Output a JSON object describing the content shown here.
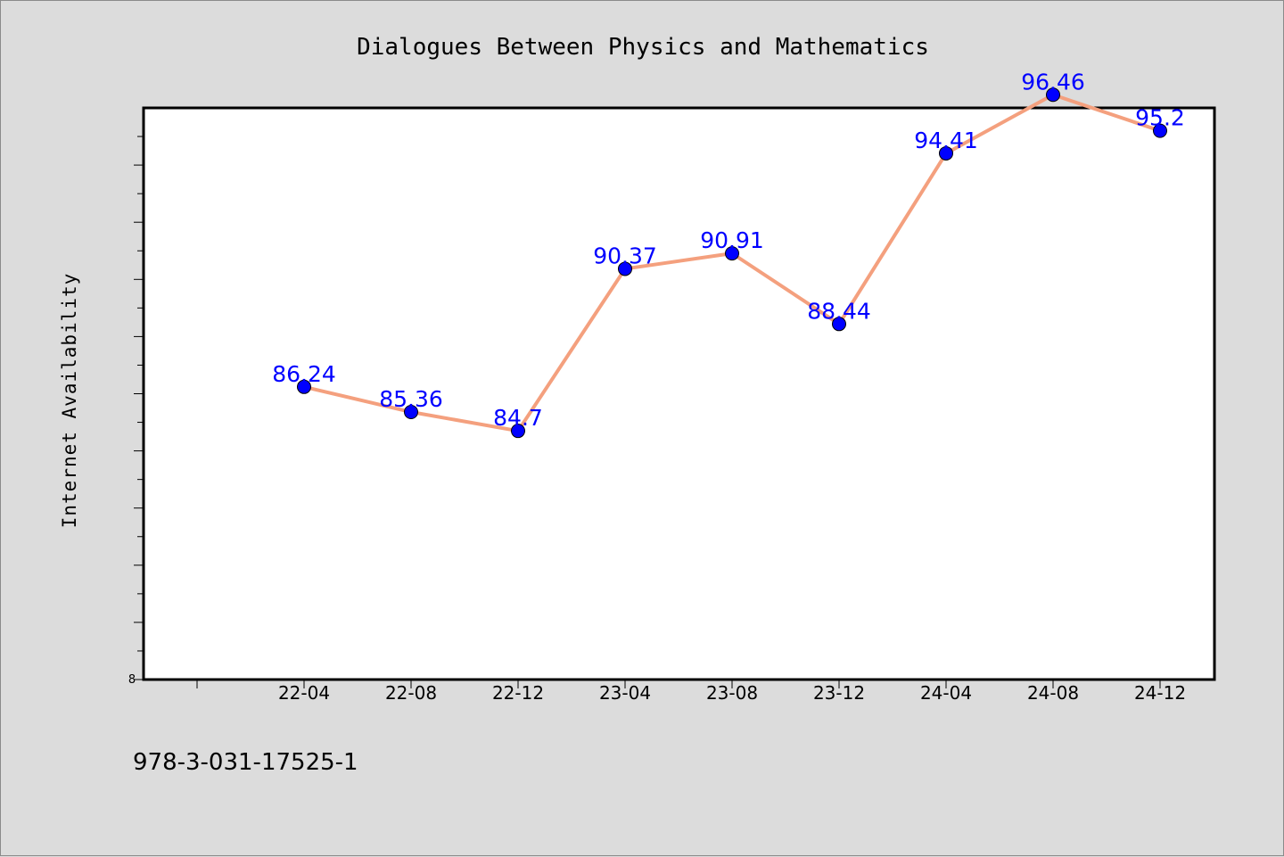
{
  "colors": {
    "background": "#dcdcdc",
    "plot_background": "#ffffff",
    "line": "#f4a07e",
    "marker": "#0000ff",
    "data_label": "#0000ff"
  },
  "footer": {
    "isbn": "978-3-031-17525-1"
  },
  "chart_data": {
    "type": "line",
    "title": "Dialogues Between Physics and Mathematics",
    "xlabel": "",
    "ylabel": "Internet Availability",
    "categories": [
      "22-04",
      "22-08",
      "22-12",
      "23-04",
      "23-08",
      "23-12",
      "24-04",
      "24-08",
      "24-12"
    ],
    "series": [
      {
        "values": [
          86.24,
          85.36,
          84.7,
          90.37,
          90.91,
          88.44,
          94.41,
          96.46,
          95.2
        ],
        "labels": [
          "86.24",
          "85.36",
          "84.7",
          "90.37",
          "90.91",
          "88.44",
          "94.41",
          "96.46",
          "95.2"
        ]
      }
    ],
    "ylim": [
      76,
      96
    ],
    "y_tick_label": "8",
    "grid": false,
    "legend": "none"
  }
}
